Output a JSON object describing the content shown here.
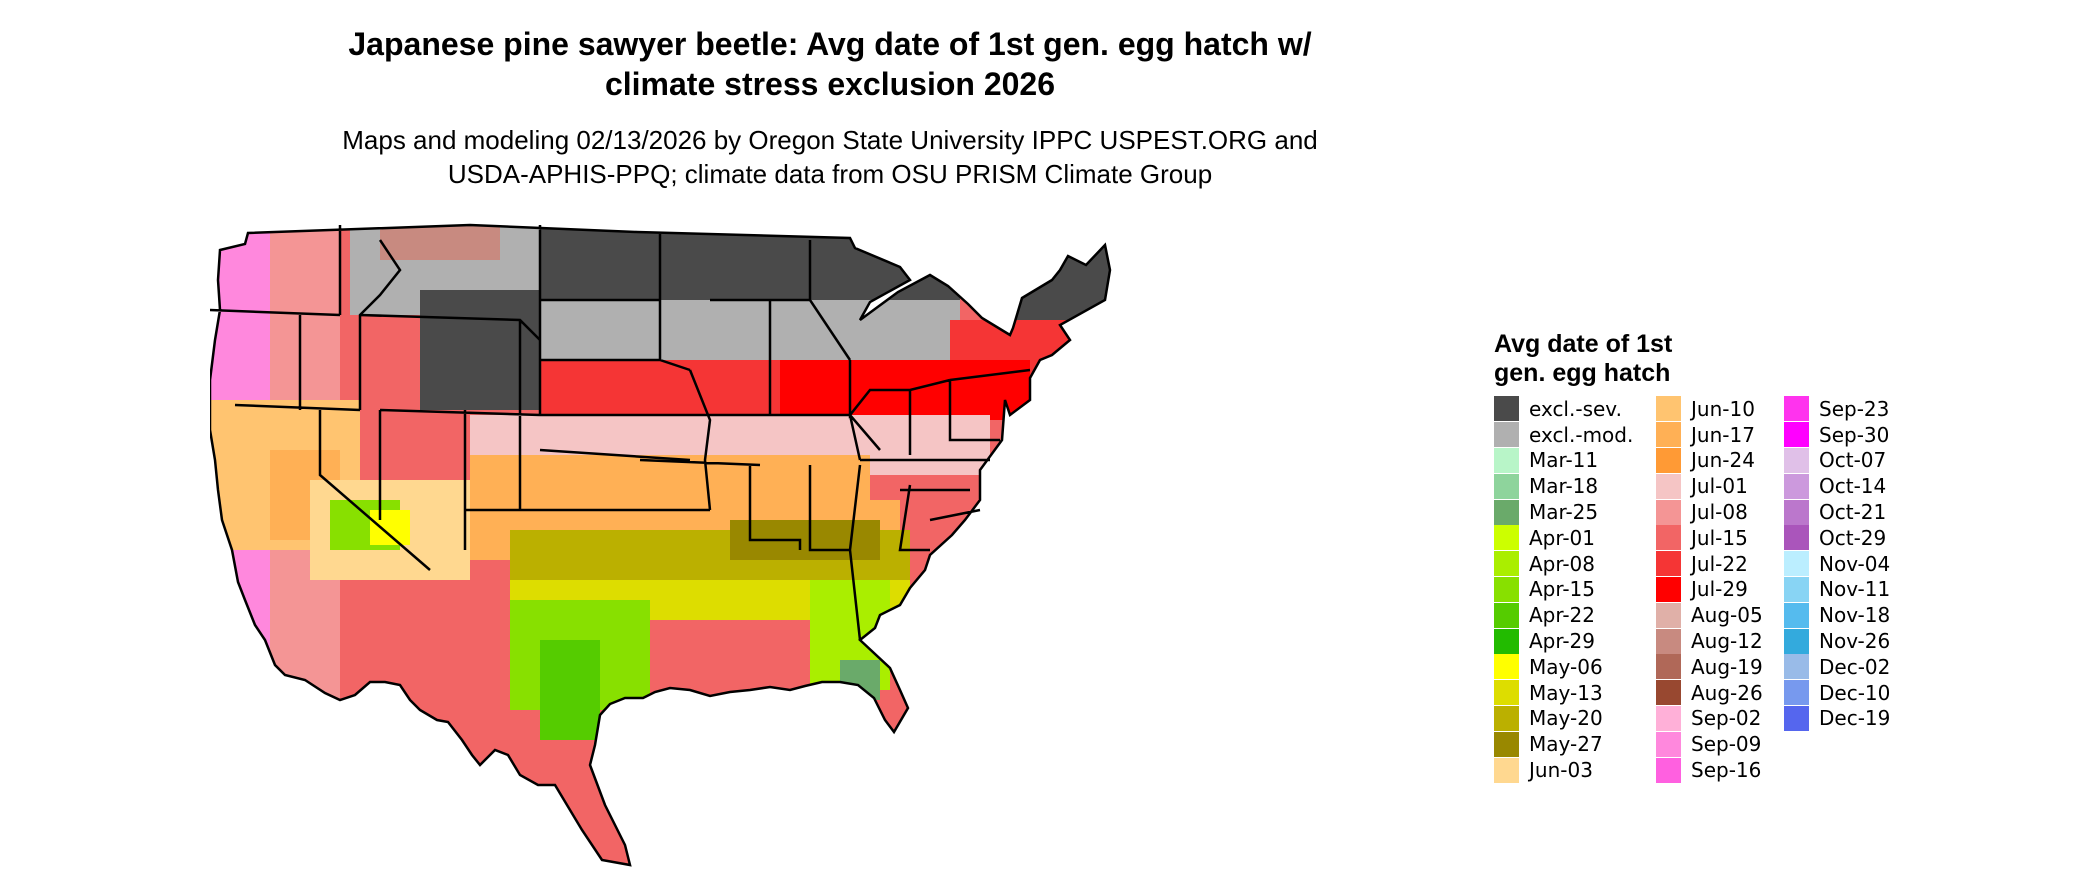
{
  "title_line1": "Japanese pine sawyer beetle: Avg date of 1st gen. egg hatch w/",
  "title_line2": "climate stress exclusion 2026",
  "subtitle_line1": "Maps and modeling 02/13/2026 by Oregon State University IPPC USPEST.ORG and",
  "subtitle_line2": "USDA-APHIS-PPQ; climate data from OSU PRISM Climate Group",
  "legend": {
    "title_line1": "Avg date of 1st",
    "title_line2": "gen. egg hatch",
    "columns": [
      [
        {
          "label": "excl.-sev.",
          "color": "#4a4a4a"
        },
        {
          "label": "excl.-mod.",
          "color": "#b0b0b0"
        },
        {
          "label": "Mar-11",
          "color": "#b8f5c8"
        },
        {
          "label": "Mar-18",
          "color": "#8ed49c"
        },
        {
          "label": "Mar-25",
          "color": "#6aaa6a"
        },
        {
          "label": "Apr-01",
          "color": "#ccff00"
        },
        {
          "label": "Apr-08",
          "color": "#aaee00"
        },
        {
          "label": "Apr-15",
          "color": "#88e000"
        },
        {
          "label": "Apr-22",
          "color": "#55cc00"
        },
        {
          "label": "Apr-29",
          "color": "#22bb00"
        },
        {
          "label": "May-06",
          "color": "#ffff00"
        },
        {
          "label": "May-13",
          "color": "#dddd00"
        },
        {
          "label": "May-20",
          "color": "#bbb000"
        },
        {
          "label": "May-27",
          "color": "#998800"
        },
        {
          "label": "Jun-03",
          "color": "#ffd890"
        }
      ],
      [
        {
          "label": "Jun-10",
          "color": "#ffc470"
        },
        {
          "label": "Jun-17",
          "color": "#ffb055"
        },
        {
          "label": "Jun-24",
          "color": "#ff9a35"
        },
        {
          "label": "Jul-01",
          "color": "#f5c5c5"
        },
        {
          "label": "Jul-08",
          "color": "#f49595"
        },
        {
          "label": "Jul-15",
          "color": "#f26565"
        },
        {
          "label": "Jul-22",
          "color": "#f53535"
        },
        {
          "label": "Jul-29",
          "color": "#ff0000"
        },
        {
          "label": "Aug-05",
          "color": "#e0b0a8"
        },
        {
          "label": "Aug-12",
          "color": "#c88a80"
        },
        {
          "label": "Aug-19",
          "color": "#b06858"
        },
        {
          "label": "Aug-26",
          "color": "#984830"
        },
        {
          "label": "Sep-02",
          "color": "#ffb0d8"
        },
        {
          "label": "Sep-09",
          "color": "#ff88dd"
        },
        {
          "label": "Sep-16",
          "color": "#ff60e0"
        }
      ],
      [
        {
          "label": "Sep-23",
          "color": "#ff33ee"
        },
        {
          "label": "Sep-30",
          "color": "#ff00ff"
        },
        {
          "label": "Oct-07",
          "color": "#e0c0e8"
        },
        {
          "label": "Oct-14",
          "color": "#cc99dd"
        },
        {
          "label": "Oct-21",
          "color": "#bb77cc"
        },
        {
          "label": "Oct-29",
          "color": "#aa55bb"
        },
        {
          "label": "Nov-04",
          "color": "#bbeeff"
        },
        {
          "label": "Nov-11",
          "color": "#88d4f4"
        },
        {
          "label": "Nov-18",
          "color": "#55bbee"
        },
        {
          "label": "Nov-26",
          "color": "#33aadd"
        },
        {
          "label": "Dec-02",
          "color": "#99bbe8"
        },
        {
          "label": "Dec-10",
          "color": "#7799ee"
        },
        {
          "label": "Dec-19",
          "color": "#5566ee"
        }
      ]
    ]
  }
}
